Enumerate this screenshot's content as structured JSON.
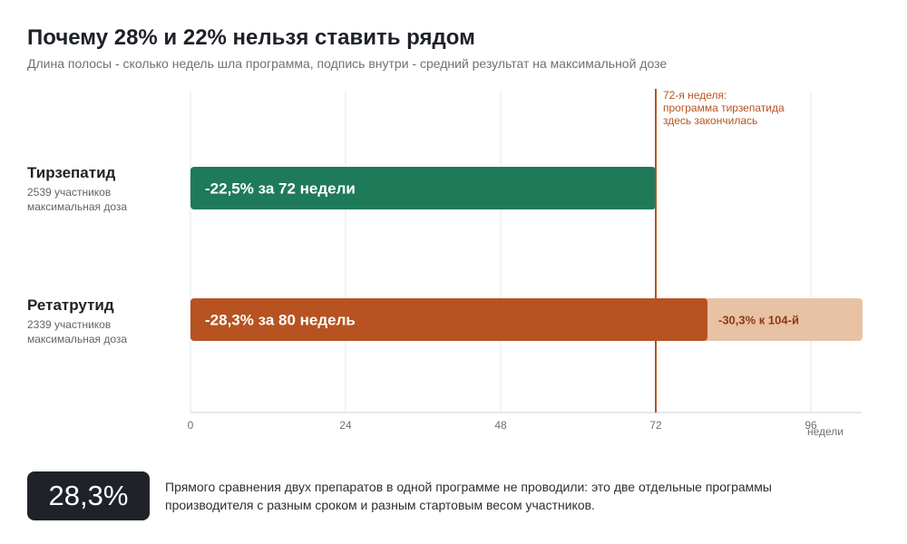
{
  "title": "Почему 28% и 22% нельзя ставить рядом",
  "subtitle": "Длина полосы - сколько недель шла программа, подпись внутри - средний результат на максимальной дозе",
  "rows": [
    {
      "name": "Тирзепатид",
      "participants": "2539 участников",
      "dose": "максимальная доза"
    },
    {
      "name": "Ретатрутид",
      "participants": "2339 участников",
      "dose": "максимальная доза"
    }
  ],
  "chart_data": {
    "type": "bar",
    "orientation": "horizontal",
    "categories": [
      "Тирзепатид",
      "Ретатрутид"
    ],
    "series": [
      {
        "values": [
          72,
          80
        ],
        "labels": [
          "-22,5% за 72 недели",
          "-28,3% за 80 недель"
        ],
        "colors": [
          "#1f7a5a",
          "#b65321"
        ]
      },
      {
        "values": [
          0,
          24
        ],
        "labels": [
          "",
          "-30,3% к 104-й"
        ],
        "colors": [
          "#e8c2a4",
          "#e8c2a4"
        ]
      }
    ],
    "xlabel": "недели",
    "xlim": [
      0,
      104
    ],
    "xticks": [
      0,
      24,
      48,
      72,
      96
    ],
    "grid": true,
    "reference_line": {
      "x": 72,
      "color": "#b65321",
      "label_lines": [
        "72-я неделя:",
        "программа тирзепатида",
        "здесь закончилась"
      ]
    }
  },
  "kpi": {
    "value": "28,3%"
  },
  "note": "Прямого сравнения двух препаратов в одной программе не проводили: это две отдельные программы производителя с разным сроком и разным стартовым весом участников.",
  "colors": {
    "tirzepatide": "#1f7a5a",
    "retatrutide": "#b65321",
    "retatrutide_extension": "#e8c2a4",
    "extension_text": "#8a3a12",
    "kpi_background": "#1f2329"
  }
}
